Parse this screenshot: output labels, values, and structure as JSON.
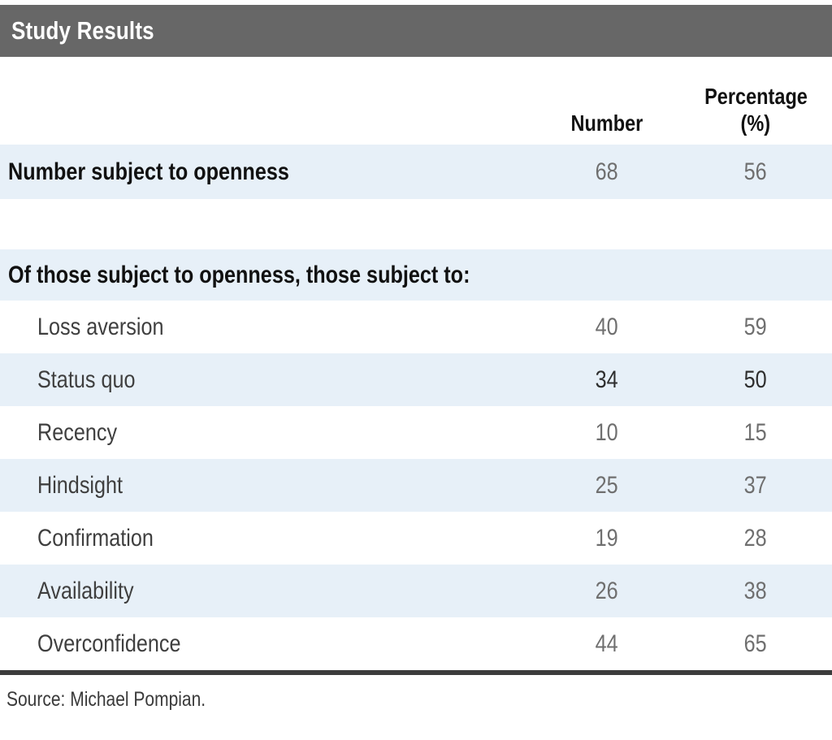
{
  "title": "Study Results",
  "columns": {
    "number": "Number",
    "percentage_line1": "Percentage",
    "percentage_line2": "(%)"
  },
  "table": {
    "summary_row": {
      "label": "Number subject to openness",
      "number": "68",
      "percentage": "56"
    },
    "section_header": "Of those subject to openness, those subject to:",
    "rows": [
      {
        "label": "Loss aversion",
        "number": "40",
        "percentage": "59"
      },
      {
        "label": "Status quo",
        "number": "34",
        "percentage": "50"
      },
      {
        "label": "Recency",
        "number": "10",
        "percentage": "15"
      },
      {
        "label": "Hindsight",
        "number": "25",
        "percentage": "37"
      },
      {
        "label": "Confirmation",
        "number": "19",
        "percentage": "28"
      },
      {
        "label": "Availability",
        "number": "26",
        "percentage": "38"
      },
      {
        "label": "Overconfidence",
        "number": "44",
        "percentage": "65"
      }
    ]
  },
  "source": "Source: Michael Pompian.",
  "colors": {
    "header_bar": "#676767",
    "row_highlight": "#e7f0f8",
    "bold_text": "#111111",
    "label_text": "#3f3f3f",
    "number_text": "#6f6f6f",
    "bottom_rule": "#3c3c3c",
    "title_text": "#ffffff"
  },
  "chart_data": {
    "type": "table",
    "title": "Study Results",
    "columns": [
      "",
      "Number",
      "Percentage (%)"
    ],
    "rows": [
      [
        "Number subject to openness",
        68,
        56
      ],
      [
        "Of those subject to openness, those subject to:",
        null,
        null
      ],
      [
        "Loss aversion",
        40,
        59
      ],
      [
        "Status quo",
        34,
        50
      ],
      [
        "Recency",
        10,
        15
      ],
      [
        "Hindsight",
        25,
        37
      ],
      [
        "Confirmation",
        19,
        28
      ],
      [
        "Availability",
        26,
        38
      ],
      [
        "Overconfidence",
        44,
        65
      ]
    ],
    "source": "Source: Michael Pompian.",
    "layout_hints": {
      "striped_rows": true,
      "header_bar": true
    }
  }
}
